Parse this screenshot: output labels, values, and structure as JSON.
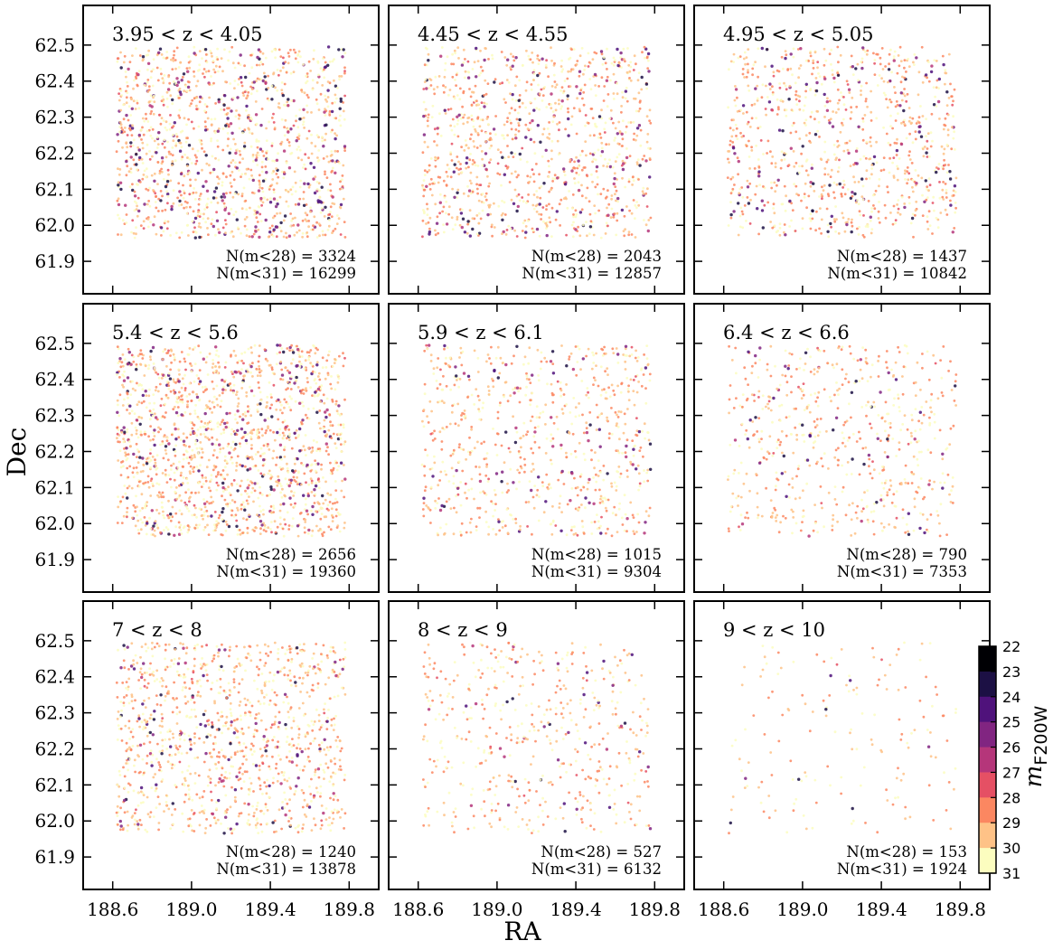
{
  "chart_data": {
    "type": "scatter",
    "xlabel": "RA",
    "ylabel": "Dec",
    "xlim": [
      188.45,
      189.95
    ],
    "ylim": [
      61.81,
      62.61
    ],
    "xticks": [
      188.6,
      189.0,
      189.4,
      189.8
    ],
    "yticks": [
      61.9,
      62.0,
      62.1,
      62.2,
      62.3,
      62.4,
      62.5
    ],
    "xtick_labels": [
      "188.6",
      "189.0",
      "189.4",
      "189.8"
    ],
    "ytick_labels": [
      "61.9",
      "62.0",
      "62.1",
      "62.2",
      "62.3",
      "62.4",
      "62.5"
    ],
    "footprint": {
      "ra": [
        188.62,
        189.78
      ],
      "dec": [
        61.965,
        62.495
      ]
    },
    "panels": [
      {
        "title": "3.95 < z < 4.05",
        "n28_label": "N(m<28) = 3324",
        "n31_label": "N(m<31) = 16299",
        "n28": 3324,
        "n31": 16299
      },
      {
        "title": "4.45 < z < 4.55",
        "n28_label": "N(m<28) = 2043",
        "n31_label": "N(m<31) = 12857",
        "n28": 2043,
        "n31": 12857
      },
      {
        "title": "4.95 < z < 5.05",
        "n28_label": "N(m<28) = 1437",
        "n31_label": "N(m<31) = 10842",
        "n28": 1437,
        "n31": 10842
      },
      {
        "title": "5.4 < z < 5.6",
        "n28_label": "N(m<28) = 2656",
        "n31_label": "N(m<31) = 19360",
        "n28": 2656,
        "n31": 19360
      },
      {
        "title": "5.9 < z < 6.1",
        "n28_label": "N(m<28) = 1015",
        "n31_label": "N(m<31) = 9304",
        "n28": 1015,
        "n31": 9304
      },
      {
        "title": "6.4 < z < 6.6",
        "n28_label": "N(m<28) = 790",
        "n31_label": "N(m<31) = 7353",
        "n28": 790,
        "n31": 7353
      },
      {
        "title": "7 < z < 8",
        "n28_label": "N(m<28) = 1240",
        "n31_label": "N(m<31) = 13878",
        "n28": 1240,
        "n31": 13878
      },
      {
        "title": "8 < z < 9",
        "n28_label": "N(m<28) = 527",
        "n31_label": "N(m<31) = 6132",
        "n28": 527,
        "n31": 6132
      },
      {
        "title": "9 < z < 10",
        "n28_label": "N(m<28) = 153",
        "n31_label": "N(m<31) = 1924",
        "n28": 153,
        "n31": 1924
      }
    ],
    "colorbar": {
      "label_base": "m",
      "label_sub": "F200W",
      "range": [
        22,
        31
      ],
      "ticks": [
        "22",
        "23",
        "24",
        "25",
        "26",
        "27",
        "28",
        "29",
        "30",
        "31"
      ],
      "colors": [
        "#000004",
        "#1c1044",
        "#4f127b",
        "#812581",
        "#b5367a",
        "#e55064",
        "#fb8761",
        "#fec287",
        "#fcfdbf"
      ]
    }
  }
}
